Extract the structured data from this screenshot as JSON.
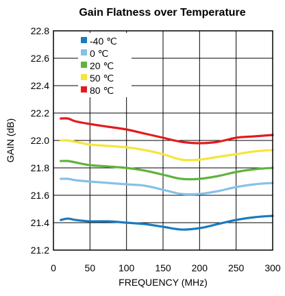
{
  "chart_data": {
    "type": "line",
    "title": "Gain Flatness over Temperature",
    "xlabel": "FREQUENCY (MHz)",
    "ylabel": "GAIN (dB)",
    "xlim": [
      0,
      300
    ],
    "ylim": [
      21.2,
      22.8
    ],
    "xticks": [
      0,
      50,
      100,
      150,
      200,
      250,
      300
    ],
    "yticks": [
      21.2,
      21.4,
      21.6,
      21.8,
      22.0,
      22.2,
      22.4,
      22.6,
      22.8
    ],
    "xtick_labels": [
      "0",
      "50",
      "100",
      "150",
      "200",
      "250",
      "300"
    ],
    "ytick_labels": [
      "21.2",
      "21.4",
      "21.6",
      "21.8",
      "22.0",
      "22.2",
      "22.4",
      "22.6",
      "22.8"
    ],
    "grid": true,
    "legend_position": "top-left",
    "x": [
      10,
      20,
      30,
      50,
      75,
      100,
      125,
      150,
      175,
      200,
      225,
      250,
      275,
      300
    ],
    "series": [
      {
        "name": "-40 ℃",
        "color": "#1a7bbf",
        "values": [
          21.42,
          21.43,
          21.42,
          21.41,
          21.41,
          21.4,
          21.39,
          21.37,
          21.35,
          21.36,
          21.39,
          21.42,
          21.44,
          21.45
        ]
      },
      {
        "name": "0 ℃",
        "color": "#84c2e6",
        "values": [
          21.72,
          21.72,
          21.71,
          21.7,
          21.69,
          21.68,
          21.67,
          21.64,
          21.61,
          21.61,
          21.63,
          21.66,
          21.68,
          21.69
        ]
      },
      {
        "name": "20 ℃",
        "color": "#5fb33c",
        "values": [
          21.85,
          21.85,
          21.84,
          21.82,
          21.81,
          21.8,
          21.78,
          21.75,
          21.72,
          21.72,
          21.74,
          21.77,
          21.79,
          21.8
        ]
      },
      {
        "name": "50 ℃",
        "color": "#f4e63a",
        "values": [
          22.0,
          22.0,
          21.99,
          21.97,
          21.96,
          21.95,
          21.93,
          21.9,
          21.86,
          21.86,
          21.88,
          21.9,
          21.92,
          21.93
        ]
      },
      {
        "name": "80 ℃",
        "color": "#e31b1b",
        "values": [
          22.16,
          22.16,
          22.14,
          22.12,
          22.1,
          22.08,
          22.05,
          22.02,
          21.99,
          21.98,
          21.99,
          22.02,
          22.03,
          22.04
        ]
      }
    ]
  }
}
